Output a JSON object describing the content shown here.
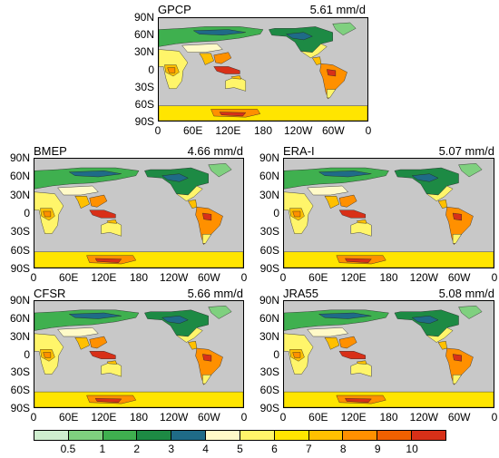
{
  "panels": [
    {
      "id": "gpcp",
      "name": "GPCP",
      "mean": "5.61 mm/d"
    },
    {
      "id": "bmep",
      "name": "BMEP",
      "mean": "4.66 mm/d"
    },
    {
      "id": "erai",
      "name": "ERA-I",
      "mean": "5.07 mm/d"
    },
    {
      "id": "cfsr",
      "name": "CFSR",
      "mean": "5.66 mm/d"
    },
    {
      "id": "jra55",
      "name": "JRA55",
      "mean": "5.08 mm/d"
    }
  ],
  "lat_labels": [
    "90N",
    "60N",
    "30N",
    "0",
    "30S",
    "60S",
    "90S"
  ],
  "lon_labels": [
    "0",
    "60E",
    "120E",
    "180",
    "120W",
    "60W",
    "0"
  ],
  "colorbar": {
    "labels": [
      "0.5",
      "1",
      "2",
      "3",
      "4",
      "5",
      "6",
      "7",
      "8",
      "9",
      "10"
    ],
    "colors": [
      "#cfeecf",
      "#7fd07f",
      "#3fb04f",
      "#1d8a44",
      "#1f6b87",
      "#fffac8",
      "#fff56a",
      "#ffe500",
      "#ffc000",
      "#ff9000",
      "#f06000",
      "#d83018"
    ]
  },
  "map_colors": {
    "ocean": "#c8c8c8"
  }
}
